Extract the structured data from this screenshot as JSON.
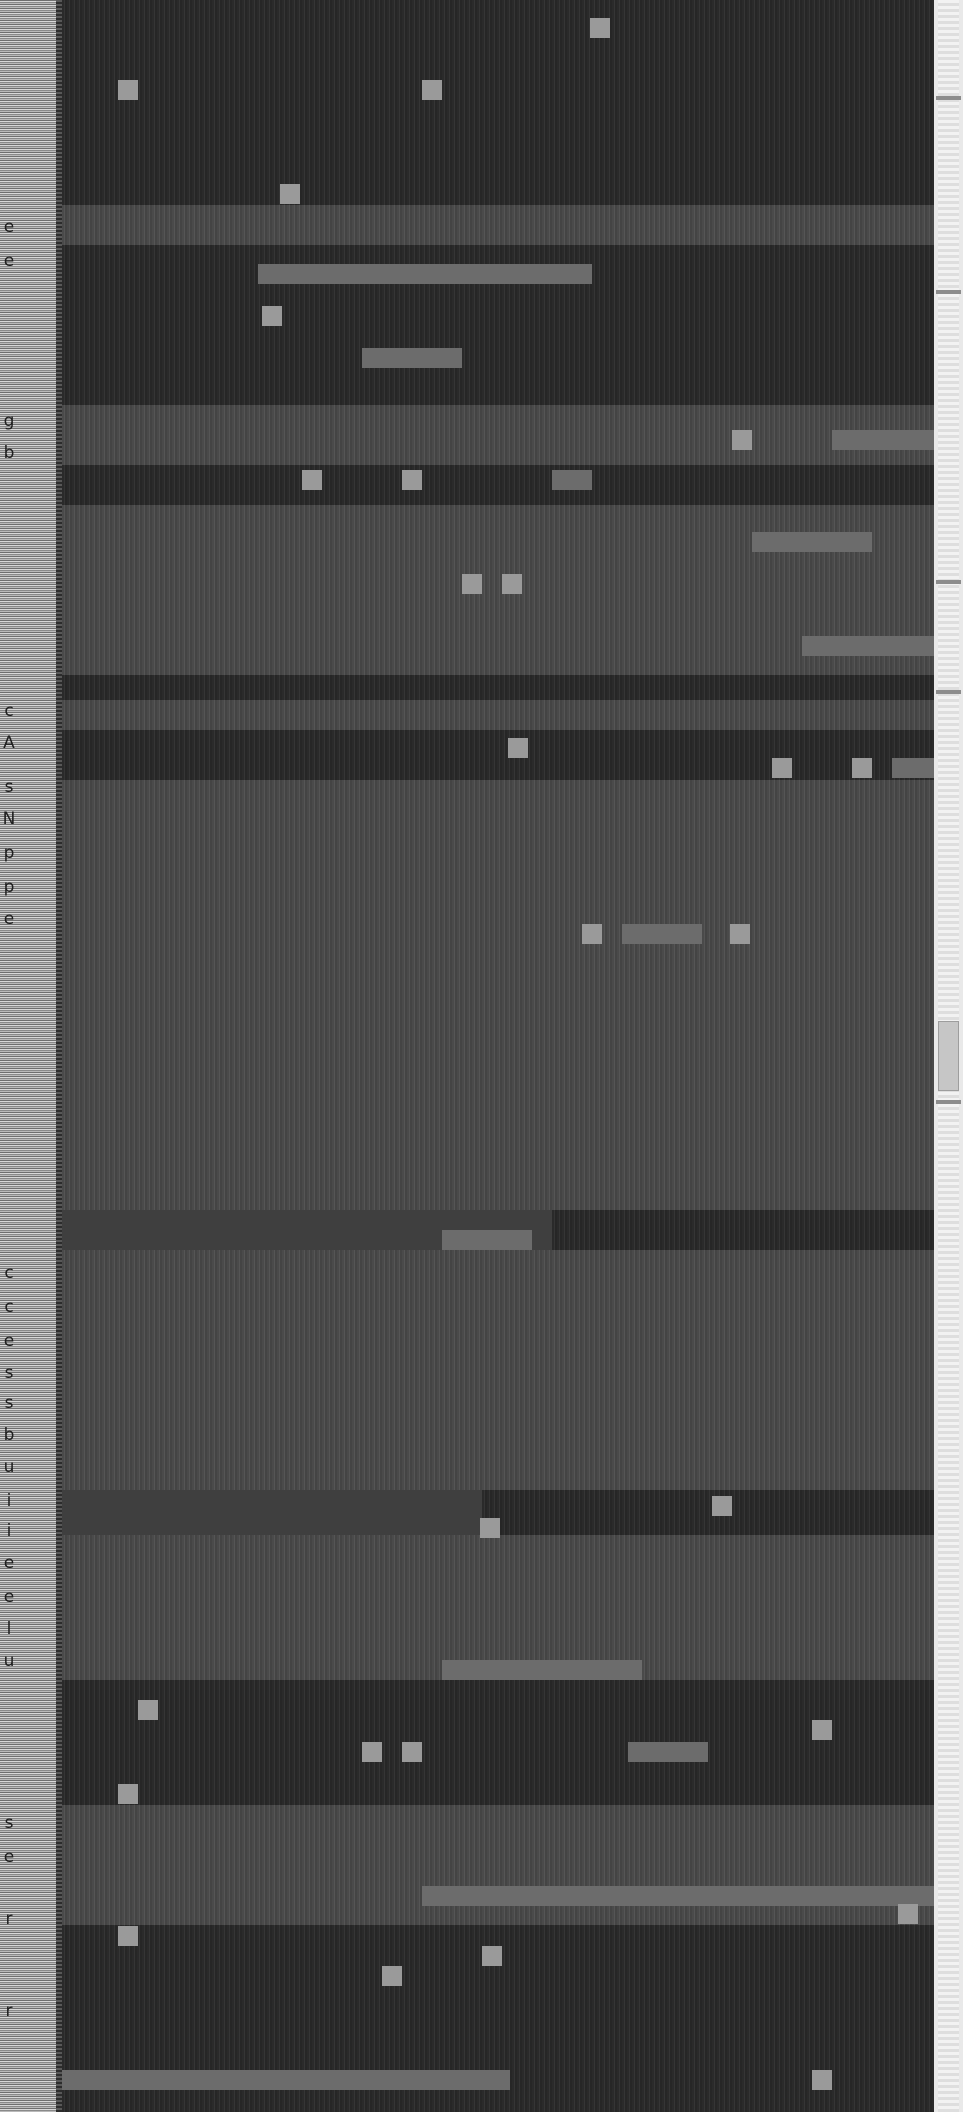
{
  "window": {
    "title": ""
  },
  "gutter": {
    "glyphs": [
      {
        "char": "e",
        "line": "1"
      },
      {
        "char": "e",
        "line": "2"
      },
      {
        "char": "g",
        "line": "3"
      },
      {
        "char": "b",
        "line": "4"
      },
      {
        "char": "c",
        "line": "5"
      },
      {
        "char": "A",
        "line": "6"
      },
      {
        "char": "s",
        "line": "7"
      },
      {
        "char": "N",
        "line": "8"
      },
      {
        "char": "p",
        "line": "9"
      },
      {
        "char": "p",
        "line": "10"
      },
      {
        "char": "e",
        "line": "11"
      },
      {
        "char": "c",
        "line": "12"
      },
      {
        "char": "c",
        "line": "13"
      },
      {
        "char": "e",
        "line": "14"
      },
      {
        "char": "s",
        "line": "15"
      },
      {
        "char": "s",
        "line": "16"
      },
      {
        "char": "b",
        "line": "17"
      },
      {
        "char": "u",
        "line": "18"
      },
      {
        "char": "i",
        "line": "19"
      },
      {
        "char": "i",
        "line": "20"
      },
      {
        "char": "e",
        "line": "21"
      },
      {
        "char": "e",
        "line": "22"
      },
      {
        "char": "l",
        "line": "23"
      },
      {
        "char": "u",
        "line": "24"
      },
      {
        "char": "s",
        "line": "25"
      },
      {
        "char": "e",
        "line": "26"
      },
      {
        "char": "r",
        "line": "27"
      },
      {
        "char": "r",
        "line": "28"
      }
    ]
  },
  "scrollbar": {
    "position": 0.5
  },
  "colors": {
    "background": "#3f3f3f",
    "gutter": "#b9b9b9",
    "scrollbar": "#e9e9e9"
  }
}
